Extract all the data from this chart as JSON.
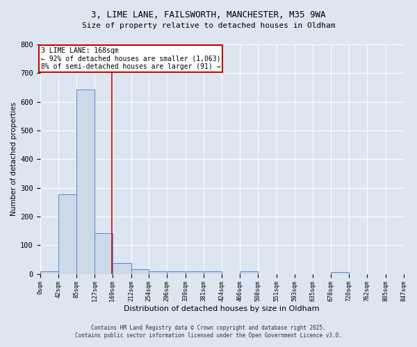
{
  "title1": "3, LIME LANE, FAILSWORTH, MANCHESTER, M35 9WA",
  "title2": "Size of property relative to detached houses in Oldham",
  "xlabel": "Distribution of detached houses by size in Oldham",
  "ylabel": "Number of detached properties",
  "bar_color": "#ccd9e8",
  "bar_edge_color": "#5588cc",
  "background_color": "#dde5f0",
  "grid_color": "#ffffff",
  "bin_edges": [
    0,
    42,
    85,
    127,
    169,
    212,
    254,
    296,
    339,
    381,
    424,
    466,
    508,
    551,
    593,
    635,
    678,
    720,
    762,
    805,
    847
  ],
  "bar_heights": [
    8,
    278,
    643,
    143,
    38,
    16,
    10,
    10,
    10,
    8,
    0,
    8,
    0,
    0,
    0,
    0,
    7,
    0,
    0,
    0
  ],
  "property_size": 168,
  "vline_color": "#cc0000",
  "annotation_title": "3 LIME LANE: 168sqm",
  "annotation_line1": "← 92% of detached houses are smaller (1,063)",
  "annotation_line2": "8% of semi-detached houses are larger (91) →",
  "annotation_box_color": "#ffffff",
  "annotation_border_color": "#cc0000",
  "ylim": [
    0,
    800
  ],
  "yticks": [
    0,
    100,
    200,
    300,
    400,
    500,
    600,
    700,
    800
  ],
  "footnote1": "Contains HM Land Registry data © Crown copyright and database right 2025.",
  "footnote2": "Contains public sector information licensed under the Open Government Licence v3.0."
}
